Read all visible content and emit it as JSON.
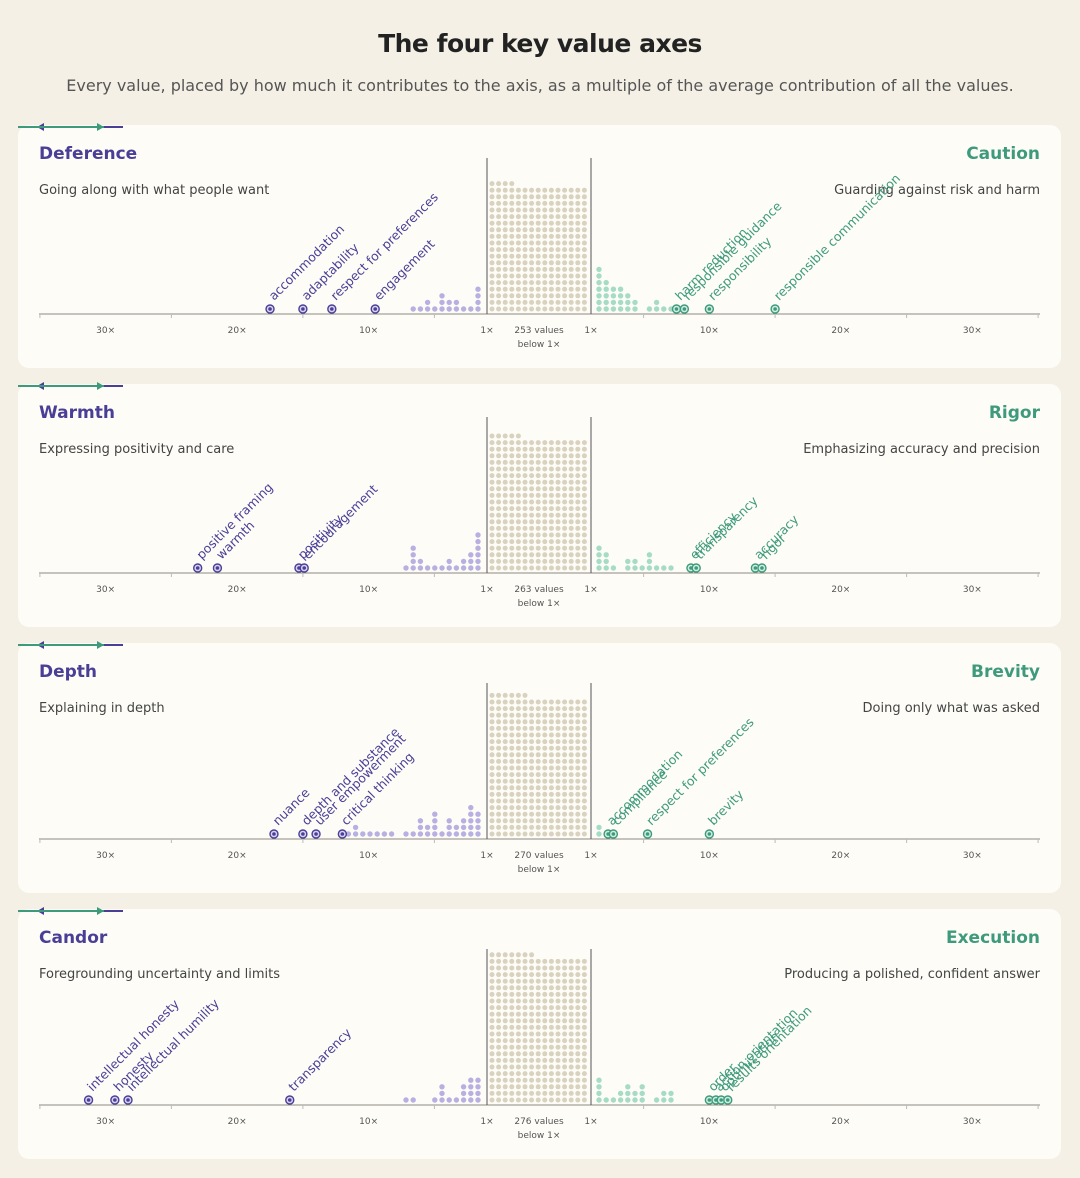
{
  "title": "The four key value axes",
  "subtitle": "Every value, placed by how much it contributes to the axis, as a multiple of the average contribution of all the values.",
  "colors": {
    "left": "#4a3f96",
    "left_dot": "#b9b0e2",
    "right": "#3e9a7c",
    "right_dot": "#a6dcc6",
    "center_dot": "#d9d2bf",
    "axis": "#9a9a9a"
  },
  "chart_data": [
    {
      "type": "scatter",
      "left_title": "Deference",
      "left_desc": "Going along with what people want",
      "right_title": "Caution",
      "right_desc": "Guarding against risk and harm",
      "center_label_1": "253 values",
      "center_label_2": "below 1×",
      "tick_labels": [
        "30×",
        "20×",
        "10×",
        "1×"
      ],
      "left_labeled": [
        {
          "name": "accommodation",
          "x": 17.5
        },
        {
          "name": "adaptability",
          "x": 15.0
        },
        {
          "name": "respect for preferences",
          "x": 12.8
        },
        {
          "name": "engagement",
          "x": 9.5
        }
      ],
      "right_labeled": [
        {
          "name": "harm reduction",
          "x": 7.5
        },
        {
          "name": "responsible guidance",
          "x": 8.1
        },
        {
          "name": "responsibility",
          "x": 10.0
        },
        {
          "name": "responsible communication",
          "x": 15.0
        }
      ],
      "left_small": [
        8.2,
        6.6,
        5.2,
        4.6,
        4.1,
        3.6,
        3.2,
        2.4,
        1.9,
        1.4
      ],
      "left_small_counts": [
        1,
        1,
        2,
        1,
        3,
        2,
        2,
        1,
        1,
        4
      ],
      "right_small_counts": [
        7,
        5,
        4,
        4,
        3,
        2,
        0,
        1,
        2,
        1,
        1
      ],
      "center_rows": 20
    },
    {
      "type": "scatter",
      "left_title": "Warmth",
      "left_desc": "Expressing positivity and care",
      "right_title": "Rigor",
      "right_desc": "Emphasizing accuracy and precision",
      "center_label_1": "263 values",
      "center_label_2": "below 1×",
      "tick_labels": [
        "30×",
        "20×",
        "10×",
        "1×"
      ],
      "left_labeled": [
        {
          "name": "positive framing",
          "x": 23.0
        },
        {
          "name": "warmth",
          "x": 21.5
        },
        {
          "name": "positivity",
          "x": 15.3
        },
        {
          "name": "encouragement",
          "x": 14.9
        }
      ],
      "right_labeled": [
        {
          "name": "efficiency",
          "x": 8.6
        },
        {
          "name": "transparency",
          "x": 9.0
        },
        {
          "name": "accuracy",
          "x": 13.5
        },
        {
          "name": "rigor",
          "x": 14.0
        }
      ],
      "left_small": [],
      "left_small_counts": [
        1,
        4,
        2,
        1,
        1,
        1,
        2,
        1,
        2,
        3,
        6
      ],
      "right_small_counts": [
        4,
        3,
        1,
        0,
        2,
        2,
        1,
        3,
        1,
        1,
        1
      ],
      "center_rows": 21
    },
    {
      "type": "scatter",
      "left_title": "Depth",
      "left_desc": "Explaining in depth",
      "right_title": "Brevity",
      "right_desc": "Doing only what was asked",
      "center_label_1": "270 values",
      "center_label_2": "below 1×",
      "tick_labels": [
        "30×",
        "20×",
        "10×",
        "1×"
      ],
      "left_labeled": [
        {
          "name": "nuance",
          "x": 17.2
        },
        {
          "name": "depth and substance",
          "x": 15.0
        },
        {
          "name": "user empowerment",
          "x": 14.0
        },
        {
          "name": "critical thinking",
          "x": 12.0
        }
      ],
      "right_labeled": [
        {
          "name": "accommodation",
          "x": 2.3
        },
        {
          "name": "compliance",
          "x": 2.7
        },
        {
          "name": "respect for preferences",
          "x": 5.3
        },
        {
          "name": "brevity",
          "x": 10.0
        }
      ],
      "left_small_counts": [
        1,
        1,
        2,
        1,
        1,
        1,
        1,
        1,
        0,
        1,
        1,
        3,
        2,
        4,
        1,
        3,
        2,
        3,
        5,
        4
      ],
      "right_small_counts": [
        2
      ],
      "center_rows": 22
    },
    {
      "type": "scatter",
      "left_title": "Candor",
      "left_desc": "Foregrounding uncertainty and limits",
      "right_title": "Execution",
      "right_desc": "Producing a polished, confident answer",
      "center_label_1": "276 values",
      "center_label_2": "below 1×",
      "tick_labels": [
        "30×",
        "20×",
        "10×",
        "1×"
      ],
      "left_labeled": [
        {
          "name": "intellectual honesty",
          "x": 31.3
        },
        {
          "name": "honesty",
          "x": 29.3
        },
        {
          "name": "intellectual humility",
          "x": 28.3
        },
        {
          "name": "transparency",
          "x": 16.0
        }
      ],
      "right_labeled": [
        {
          "name": "order",
          "x": 10.0
        },
        {
          "name": "action orientation",
          "x": 10.5
        },
        {
          "name": "optimization",
          "x": 10.9
        },
        {
          "name": "results orientation",
          "x": 11.4
        }
      ],
      "left_small_counts": [
        1,
        1,
        0,
        0,
        1,
        3,
        1,
        1,
        3,
        4,
        4
      ],
      "right_small_counts": [
        4,
        1,
        1,
        2,
        3,
        2,
        3,
        0,
        1,
        2,
        2
      ],
      "center_rows": 23
    }
  ]
}
